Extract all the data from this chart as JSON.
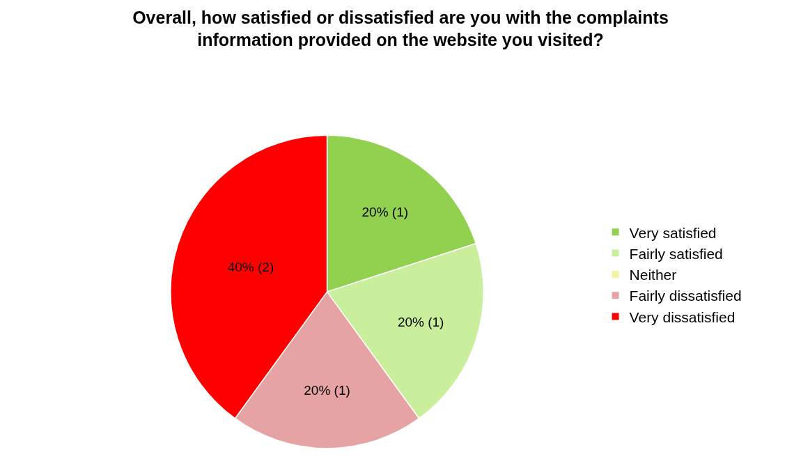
{
  "chart_data": {
    "type": "pie",
    "title": "Overall, how satisfied or dissatisfied are you with the complaints\ninformation provided on the website you visited?",
    "categories": [
      "Very satisfied",
      "Fairly satisfied",
      "Neither",
      "Fairly dissatisfied",
      "Very dissatisfied"
    ],
    "values": [
      20,
      20,
      0,
      20,
      40
    ],
    "value_labels": [
      "20% (1)",
      "20% (1)",
      null,
      "20% (1)",
      "40% (2)"
    ],
    "colors": [
      "#92d050",
      "#c9ee9c",
      "#f3f3a2",
      "#e6a3a3",
      "#ff0000"
    ],
    "legend": "right"
  }
}
